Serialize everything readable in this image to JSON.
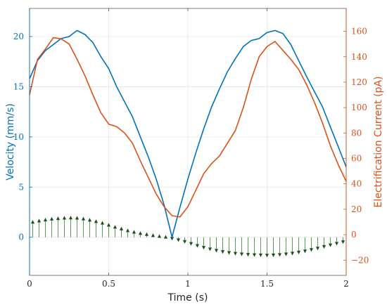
{
  "chart_data": {
    "type": "line",
    "title": "",
    "xlabel": "Time (s)",
    "xlim": [
      0,
      2
    ],
    "xticks": [
      0,
      0.5,
      1,
      1.5,
      2
    ],
    "xtick_labels": [
      "0",
      "0.5",
      "1",
      "1.5",
      "2"
    ],
    "grid": true,
    "legend": "none",
    "y_left": {
      "label": "Velocity (mm/s)",
      "color": "#0072BD",
      "ylim": [
        -3.8,
        22.8
      ],
      "ticks": [
        0,
        5,
        10,
        15,
        20
      ],
      "tick_labels": [
        "0",
        "5",
        "10",
        "15",
        "20"
      ]
    },
    "y_right": {
      "label": "Electrification Current (pA)",
      "color": "#D95319",
      "ylim": [
        -32,
        178
      ],
      "ticks": [
        -20,
        0,
        20,
        40,
        60,
        80,
        100,
        120,
        140,
        160
      ],
      "tick_labels": [
        "−20",
        "0",
        "20",
        "40",
        "60",
        "80",
        "100",
        "120",
        "140",
        "160"
      ]
    },
    "series": [
      {
        "name": "",
        "axis": "left",
        "kind": "line",
        "color": "#0072BD",
        "x": [
          0,
          0.05,
          0.1,
          0.15,
          0.2,
          0.25,
          0.3,
          0.35,
          0.4,
          0.45,
          0.5,
          0.55,
          0.6,
          0.65,
          0.7,
          0.75,
          0.8,
          0.85,
          0.9,
          0.95,
          1.0,
          1.05,
          1.1,
          1.15,
          1.2,
          1.25,
          1.3,
          1.35,
          1.4,
          1.45,
          1.5,
          1.55,
          1.6,
          1.65,
          1.7,
          1.75,
          1.8,
          1.85,
          1.9,
          1.95,
          2.0
        ],
        "values": [
          15.8,
          17.6,
          18.6,
          19.2,
          19.8,
          20.0,
          20.6,
          20.2,
          19.4,
          18.0,
          16.8,
          15.0,
          13.5,
          12.0,
          10.0,
          8.0,
          5.8,
          3.2,
          0.0,
          3.0,
          5.8,
          8.4,
          10.8,
          13.0,
          14.8,
          16.5,
          17.8,
          19.0,
          19.6,
          19.8,
          20.4,
          20.6,
          20.3,
          19.2,
          17.6,
          16.0,
          14.5,
          13.0,
          11.0,
          9.0,
          7.0
        ]
      },
      {
        "name": "",
        "axis": "right",
        "kind": "line",
        "color": "#D95319",
        "x": [
          0,
          0.05,
          0.1,
          0.15,
          0.2,
          0.25,
          0.3,
          0.35,
          0.4,
          0.45,
          0.5,
          0.55,
          0.6,
          0.65,
          0.7,
          0.75,
          0.8,
          0.85,
          0.9,
          0.95,
          1.0,
          1.05,
          1.1,
          1.15,
          1.2,
          1.25,
          1.3,
          1.35,
          1.4,
          1.45,
          1.5,
          1.55,
          1.6,
          1.65,
          1.7,
          1.75,
          1.8,
          1.85,
          1.9,
          1.95,
          2.0
        ],
        "values": [
          110,
          138,
          146,
          155,
          154,
          150,
          138,
          125,
          110,
          96,
          87,
          85,
          80,
          72,
          58,
          45,
          32,
          22,
          15,
          14,
          22,
          35,
          48,
          56,
          62,
          72,
          82,
          100,
          122,
          140,
          148,
          152,
          145,
          138,
          130,
          118,
          104,
          88,
          70,
          55,
          42
        ]
      },
      {
        "name": "",
        "axis": "left",
        "kind": "stem",
        "color": "#2E8B2E",
        "marker_color": "#1F4F1F",
        "x": [
          0.02,
          0.06,
          0.1,
          0.14,
          0.18,
          0.22,
          0.26,
          0.3,
          0.34,
          0.38,
          0.42,
          0.46,
          0.5,
          0.54,
          0.58,
          0.62,
          0.66,
          0.7,
          0.74,
          0.78,
          0.82,
          0.86,
          0.9,
          0.94,
          0.98,
          1.02,
          1.06,
          1.1,
          1.14,
          1.18,
          1.22,
          1.26,
          1.3,
          1.34,
          1.38,
          1.42,
          1.46,
          1.5,
          1.54,
          1.58,
          1.62,
          1.66,
          1.7,
          1.74,
          1.78,
          1.82,
          1.86,
          1.9,
          1.94,
          1.98
        ],
        "values": [
          1.5,
          1.62,
          1.72,
          1.8,
          1.86,
          1.9,
          1.92,
          1.9,
          1.82,
          1.7,
          1.56,
          1.4,
          1.2,
          1.0,
          0.82,
          0.65,
          0.5,
          0.38,
          0.27,
          0.17,
          0.08,
          0.0,
          -0.1,
          -0.25,
          -0.42,
          -0.62,
          -0.82,
          -1.0,
          -1.16,
          -1.3,
          -1.42,
          -1.52,
          -1.6,
          -1.66,
          -1.7,
          -1.74,
          -1.76,
          -1.78,
          -1.76,
          -1.72,
          -1.66,
          -1.58,
          -1.48,
          -1.36,
          -1.22,
          -1.08,
          -0.92,
          -0.76,
          -0.6,
          -0.44
        ]
      }
    ]
  }
}
